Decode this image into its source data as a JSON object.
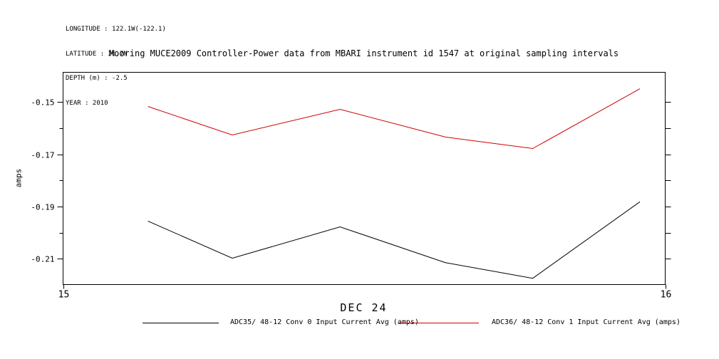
{
  "annotations": {
    "lines": [
      "LONGITUDE : 122.1W(-122.1)",
      "LATITUDE : 36.7N",
      "DEPTH (m) : -2.5",
      "YEAR : 2010"
    ]
  },
  "chart_data": {
    "type": "line",
    "title": "Mooring MUCE2009 Controller-Power data from MBARI instrument id 1547 at original sampling intervals",
    "xlabel": "DEC 24",
    "ylabel": "amps",
    "x": [
      15.141,
      15.281,
      15.46,
      15.635,
      15.78,
      15.958
    ],
    "series": [
      {
        "name": "ADC35/ 48-12 Conv 0 Input Current Avg (amps)",
        "color": "#000000",
        "values": [
          -0.1956,
          -0.2098,
          -0.1978,
          -0.2115,
          -0.2175,
          -0.1882
        ]
      },
      {
        "name": "ADC36/ 48-12 Conv 1 Input Current Avg (amps)",
        "color": "#d00000",
        "values": [
          -0.1517,
          -0.1626,
          -0.1528,
          -0.1634,
          -0.1678,
          -0.1449
        ]
      }
    ],
    "xlim": [
      15,
      16
    ],
    "ylim": [
      -0.2199,
      -0.1386
    ],
    "x_ticks": [
      {
        "value": 15,
        "label": "15"
      },
      {
        "value": 16,
        "label": "16"
      }
    ],
    "y_major_ticks": [
      {
        "value": -0.15,
        "label": "-0.15"
      },
      {
        "value": -0.17,
        "label": "-0.17"
      },
      {
        "value": -0.19,
        "label": "-0.19"
      },
      {
        "value": -0.21,
        "label": "-0.21"
      }
    ],
    "y_minor_ticks": [
      -0.16,
      -0.18,
      -0.2
    ],
    "grid": false,
    "legend_position": "bottom",
    "frame_color": "#000000",
    "background": "#ffffff"
  }
}
